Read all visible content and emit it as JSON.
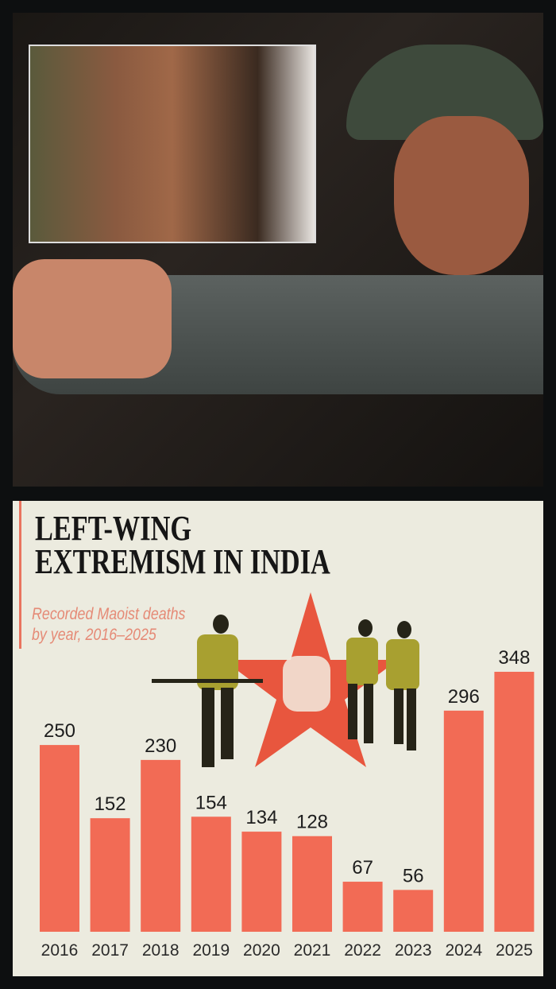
{
  "photo": {
    "description_icon": "photo"
  },
  "chart_data": {
    "type": "bar",
    "title": "LEFT-WING EXTREMISM IN INDIA",
    "title_lines": [
      "LEFT-WING",
      "EXTREMISM IN INDIA"
    ],
    "subtitle": "Recorded Maoist deaths by year, 2016–2025",
    "subtitle_lines": [
      "Recorded Maoist deaths",
      "by year, 2016–2025"
    ],
    "categories": [
      "2016",
      "2017",
      "2018",
      "2019",
      "2020",
      "2021",
      "2022",
      "2023",
      "2024",
      "2025"
    ],
    "values": [
      250,
      152,
      230,
      154,
      134,
      128,
      67,
      56,
      296,
      348
    ],
    "ylim": [
      0,
      348
    ],
    "grid": false,
    "bar_color": "#f26b55",
    "background_color": "#ecebdf"
  }
}
